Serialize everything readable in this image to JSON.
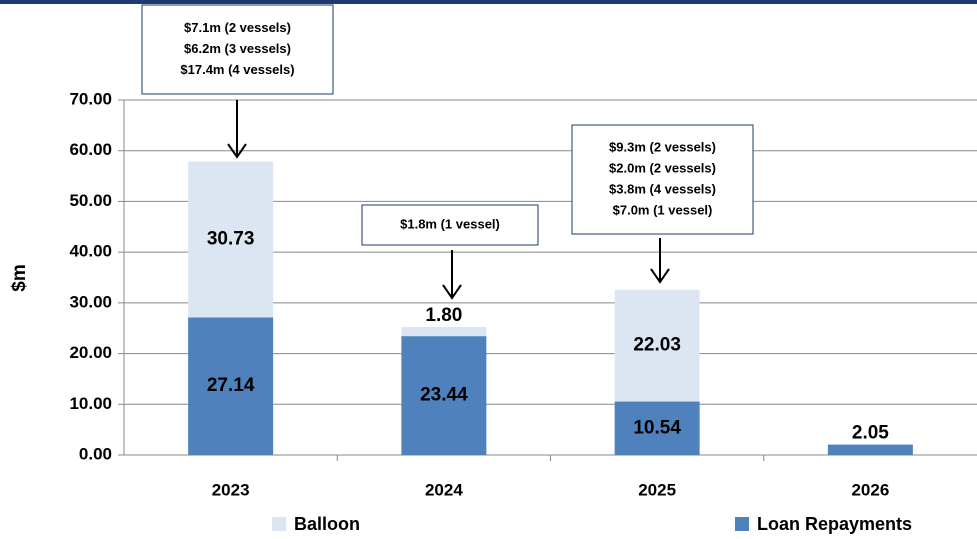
{
  "chart_data": {
    "type": "bar",
    "stacked": true,
    "y_label": "$m",
    "categories": [
      "2023",
      "2024",
      "2025",
      "2026"
    ],
    "series": [
      {
        "name": "Loan Repayments",
        "color": "#4f81bd",
        "values": [
          27.14,
          23.44,
          10.54,
          2.05
        ]
      },
      {
        "name": "Balloon",
        "color": "#dce6f2",
        "values": [
          30.73,
          1.8,
          22.03,
          null
        ],
        "value_labels": [
          "30.73",
          "1.80",
          "22.03",
          null
        ]
      }
    ],
    "ylim": [
      0,
      70
    ],
    "yticks": [
      {
        "value": 0,
        "label": "0.00"
      },
      {
        "value": 10,
        "label": "10.00"
      },
      {
        "value": 20,
        "label": "20.00"
      },
      {
        "value": 30,
        "label": "30.00"
      },
      {
        "value": 40,
        "label": "40.00"
      },
      {
        "value": 50,
        "label": "50.00"
      },
      {
        "value": 60,
        "label": "60.00"
      },
      {
        "value": 70,
        "label": "70.00"
      }
    ],
    "grid": true,
    "annotations": [
      {
        "lines": [
          "$7.1m (2 vessels)",
          "$6.2m (3 vessels)",
          "$17.4m (4 vessels)"
        ]
      },
      {
        "lines": [
          "$1.8m (1 vessel)"
        ]
      },
      {
        "lines": [
          "$9.3m (2 vessels)",
          "$2.0m (2 vessels)",
          "$3.8m (4 vessels)",
          "$7.0m (1 vessel)"
        ]
      }
    ]
  }
}
